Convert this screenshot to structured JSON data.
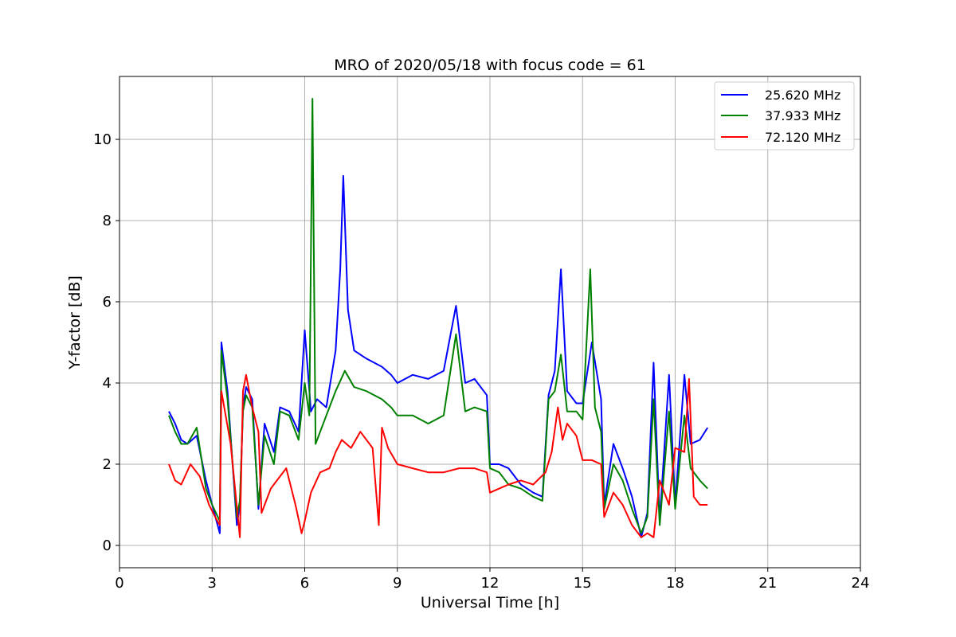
{
  "chart_data": {
    "type": "line",
    "title": "MRO of 2020/05/18 with focus code = 61",
    "xlabel": "Universal Time [h]",
    "ylabel": "Y-factor [dB]",
    "xlim": [
      0,
      24
    ],
    "ylim": [
      -0.55,
      11.55
    ],
    "xticks": [
      0,
      3,
      6,
      9,
      12,
      15,
      18,
      21,
      24
    ],
    "yticks": [
      0,
      2,
      4,
      6,
      8,
      10
    ],
    "grid": true,
    "legend_position": "top-right",
    "series": [
      {
        "name": "25.620 MHz",
        "color": "#0000ff",
        "x": [
          1.6,
          1.8,
          2.0,
          2.2,
          2.5,
          2.8,
          3.0,
          3.25,
          3.3,
          3.5,
          3.8,
          3.9,
          4.0,
          4.1,
          4.3,
          4.5,
          4.7,
          5.0,
          5.2,
          5.5,
          5.8,
          6.0,
          6.2,
          6.4,
          6.7,
          7.0,
          7.15,
          7.25,
          7.4,
          7.6,
          8.0,
          8.5,
          8.8,
          9.0,
          9.5,
          10.0,
          10.5,
          10.9,
          11.2,
          11.5,
          11.9,
          12.0,
          12.3,
          12.6,
          13.0,
          13.4,
          13.7,
          13.9,
          14.1,
          14.3,
          14.5,
          14.8,
          15.0,
          15.3,
          15.6,
          15.7,
          16.0,
          16.3,
          16.6,
          16.9,
          17.1,
          17.3,
          17.5,
          17.8,
          18.0,
          18.3,
          18.5,
          18.8,
          19.05
        ],
        "y": [
          3.3,
          3.0,
          2.6,
          2.5,
          2.7,
          1.6,
          1.0,
          0.3,
          5.0,
          3.8,
          0.5,
          1.0,
          3.4,
          3.9,
          3.6,
          0.9,
          3.0,
          2.3,
          3.4,
          3.3,
          2.8,
          5.3,
          3.3,
          3.6,
          3.4,
          4.8,
          6.8,
          9.1,
          5.8,
          4.8,
          4.6,
          4.4,
          4.2,
          4.0,
          4.2,
          4.1,
          4.3,
          5.9,
          4.0,
          4.1,
          3.7,
          2.0,
          2.0,
          1.9,
          1.5,
          1.3,
          1.2,
          3.7,
          4.3,
          6.8,
          3.8,
          3.5,
          3.5,
          5.0,
          3.6,
          1.0,
          2.5,
          1.9,
          1.2,
          0.2,
          0.8,
          4.5,
          0.6,
          4.2,
          1.0,
          4.2,
          2.5,
          2.6,
          2.9
        ]
      },
      {
        "name": "37.933 MHz",
        "color": "#008000",
        "x": [
          1.6,
          1.8,
          2.0,
          2.2,
          2.5,
          2.8,
          3.0,
          3.25,
          3.3,
          3.5,
          3.8,
          3.9,
          4.0,
          4.1,
          4.3,
          4.5,
          4.7,
          5.0,
          5.2,
          5.5,
          5.8,
          6.0,
          6.15,
          6.25,
          6.35,
          6.7,
          7.0,
          7.3,
          7.6,
          8.0,
          8.5,
          8.8,
          9.0,
          9.5,
          10.0,
          10.5,
          10.9,
          11.2,
          11.5,
          11.9,
          12.0,
          12.3,
          12.6,
          13.0,
          13.4,
          13.7,
          13.9,
          14.1,
          14.3,
          14.5,
          14.8,
          15.0,
          15.25,
          15.4,
          15.6,
          15.7,
          16.0,
          16.3,
          16.6,
          16.9,
          17.1,
          17.3,
          17.5,
          17.8,
          18.0,
          18.3,
          18.5,
          18.8,
          19.05
        ],
        "y": [
          3.2,
          2.8,
          2.5,
          2.5,
          2.9,
          1.4,
          1.0,
          0.6,
          4.8,
          3.6,
          0.7,
          1.1,
          3.3,
          3.7,
          3.4,
          1.0,
          2.7,
          2.0,
          3.3,
          3.2,
          2.6,
          4.0,
          3.2,
          11.0,
          2.5,
          3.2,
          3.8,
          4.3,
          3.9,
          3.8,
          3.6,
          3.4,
          3.2,
          3.2,
          3.0,
          3.2,
          5.2,
          3.3,
          3.4,
          3.3,
          1.9,
          1.8,
          1.5,
          1.4,
          1.2,
          1.1,
          3.6,
          3.8,
          4.7,
          3.3,
          3.3,
          3.1,
          6.8,
          3.4,
          2.8,
          0.9,
          2.0,
          1.6,
          0.9,
          0.3,
          0.7,
          3.6,
          0.5,
          3.3,
          0.9,
          3.2,
          1.9,
          1.6,
          1.4
        ]
      },
      {
        "name": "72.120 MHz",
        "color": "#ff0000",
        "x": [
          1.6,
          1.8,
          2.0,
          2.3,
          2.6,
          2.9,
          3.1,
          3.25,
          3.3,
          3.6,
          3.9,
          4.0,
          4.1,
          4.3,
          4.5,
          4.6,
          4.9,
          5.1,
          5.4,
          5.7,
          5.9,
          6.0,
          6.2,
          6.5,
          6.8,
          7.0,
          7.2,
          7.5,
          7.8,
          8.2,
          8.4,
          8.5,
          8.7,
          9.0,
          9.5,
          10.0,
          10.5,
          11.0,
          11.5,
          11.9,
          12.0,
          12.3,
          12.6,
          13.0,
          13.4,
          13.8,
          14.0,
          14.2,
          14.35,
          14.5,
          14.8,
          15.0,
          15.3,
          15.6,
          15.7,
          16.0,
          16.3,
          16.6,
          16.9,
          17.1,
          17.3,
          17.5,
          17.8,
          18.0,
          18.3,
          18.45,
          18.6,
          18.8,
          19.05
        ],
        "y": [
          2.0,
          1.6,
          1.5,
          2.0,
          1.7,
          1.0,
          0.7,
          0.5,
          3.8,
          2.5,
          0.2,
          3.8,
          4.2,
          3.4,
          2.8,
          0.8,
          1.4,
          1.6,
          1.9,
          1.0,
          0.3,
          0.6,
          1.3,
          1.8,
          1.9,
          2.3,
          2.6,
          2.4,
          2.8,
          2.4,
          0.5,
          2.9,
          2.4,
          2.0,
          1.9,
          1.8,
          1.8,
          1.9,
          1.9,
          1.8,
          1.3,
          1.4,
          1.5,
          1.6,
          1.5,
          1.8,
          2.3,
          3.4,
          2.6,
          3.0,
          2.7,
          2.1,
          2.1,
          2.0,
          0.7,
          1.3,
          1.0,
          0.5,
          0.2,
          0.3,
          0.2,
          1.6,
          1.0,
          2.4,
          2.3,
          4.1,
          1.2,
          1.0,
          1.0
        ]
      }
    ]
  }
}
